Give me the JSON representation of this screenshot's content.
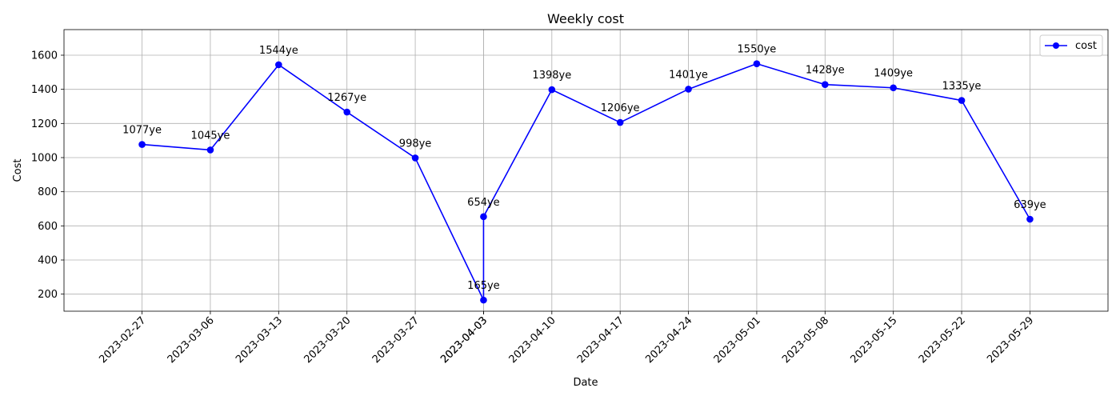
{
  "chart_data": {
    "type": "line",
    "title": "Weekly cost",
    "xlabel": "Date",
    "ylabel": "Cost",
    "ylim": [
      100,
      1750
    ],
    "xlim": [
      "2023-02-19",
      "2023-06-06"
    ],
    "yticks": [
      200,
      400,
      600,
      800,
      1000,
      1200,
      1400,
      1600
    ],
    "xticks": [
      "2023-02-27",
      "2023-03-06",
      "2023-03-13",
      "2023-03-20",
      "2023-03-27",
      "2023-04-03",
      "2023-04-03",
      "2023-04-10",
      "2023-04-17",
      "2023-04-24",
      "2023-05-01",
      "2023-05-08",
      "2023-05-15",
      "2023-05-22",
      "2023-05-29"
    ],
    "grid": true,
    "legend": {
      "position": "top-right",
      "entries": [
        "cost"
      ]
    },
    "color": "#0000ff",
    "series": [
      {
        "name": "cost",
        "x": [
          "2023-02-27",
          "2023-03-06",
          "2023-03-13",
          "2023-03-20",
          "2023-03-27",
          "2023-04-03",
          "2023-04-03",
          "2023-04-10",
          "2023-04-17",
          "2023-04-24",
          "2023-05-01",
          "2023-05-08",
          "2023-05-15",
          "2023-05-22",
          "2023-05-29"
        ],
        "y": [
          1077,
          1045,
          1544,
          1267,
          998,
          165,
          654,
          1398,
          1206,
          1401,
          1550,
          1428,
          1409,
          1335,
          639
        ],
        "labels": [
          "1077ye",
          "1045ye",
          "1544ye",
          "1267ye",
          "998ye",
          "165ye",
          "654ye",
          "1398ye",
          "1206ye",
          "1401ye",
          "1550ye",
          "1428ye",
          "1409ye",
          "1335ye",
          "639ye"
        ]
      }
    ]
  }
}
